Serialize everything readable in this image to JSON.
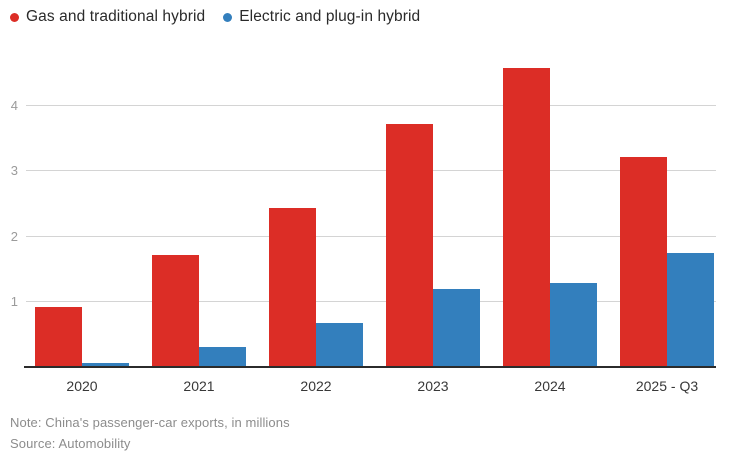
{
  "legend": {
    "items": [
      {
        "label": "Gas and traditional hybrid",
        "color": "#dc2d26",
        "icon": "legend-dot-red"
      },
      {
        "label": "Electric and plug-in hybrid",
        "color": "#337fbd",
        "icon": "legend-dot-blue"
      }
    ]
  },
  "chart_data": {
    "type": "bar",
    "title": "",
    "categories": [
      "2020",
      "2021",
      "2022",
      "2023",
      "2024",
      "2025 - Q3"
    ],
    "series": [
      {
        "name": "Gas and traditional hybrid",
        "color": "#dc2d26",
        "values": [
          0.93,
          1.72,
          2.44,
          3.72,
          4.57,
          3.21
        ]
      },
      {
        "name": "Electric and plug-in hybrid",
        "color": "#337fbd",
        "values": [
          0.08,
          0.32,
          0.68,
          1.2,
          1.3,
          1.76
        ]
      }
    ],
    "yticks": [
      1,
      2,
      3,
      4
    ],
    "ylim": [
      0,
      4.66
    ],
    "xlabel": "",
    "ylabel": "",
    "grid": true,
    "legend_position": "top-left",
    "units": "millions of vehicles"
  },
  "footer": {
    "note": "Note: China's passenger-car exports, in millions",
    "source": "Source: Automobility"
  },
  "colors": {
    "background": "#ffffff",
    "grid": "#d4d4d4",
    "axis": "#2b2b2b",
    "tick_label": "#9b9b9b",
    "x_label": "#383838",
    "legend_text": "#2a2a2a",
    "note_text": "#8c8c8c"
  }
}
